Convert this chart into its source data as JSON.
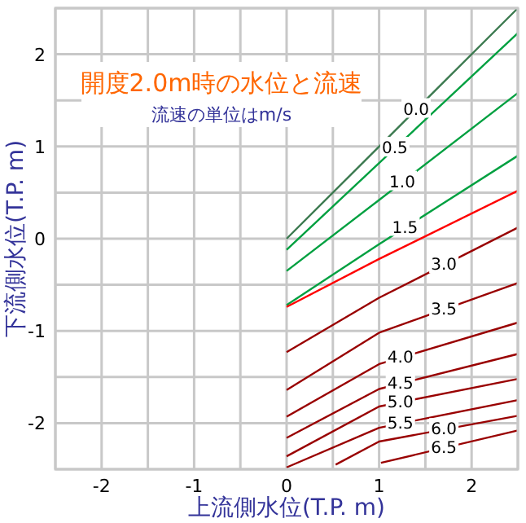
{
  "chart_data": {
    "type": "line",
    "title": "開度2.0m時の水位と流速",
    "subtitle": "流速の単位はm/s",
    "xlabel": "上流側水位(T.P. m)",
    "ylabel": "下流側水位(T.P. m)",
    "xlim": [
      -2.5,
      2.5
    ],
    "ylim": [
      -2.5,
      2.5
    ],
    "xticks": [
      {
        "value": -2.5,
        "label": null
      },
      -2,
      {
        "value": -1.5,
        "label": null
      },
      -1,
      {
        "value": -0.5,
        "label": null
      },
      0,
      {
        "value": 0.5,
        "label": null
      },
      1,
      {
        "value": 1.5,
        "label": null
      },
      2,
      {
        "value": 2.5,
        "label": null
      }
    ],
    "yticks": [
      {
        "value": -2.5,
        "label": null
      },
      -2,
      {
        "value": -1.5,
        "label": null
      },
      -1,
      {
        "value": -0.5,
        "label": null
      },
      0,
      {
        "value": 0.5,
        "label": null
      },
      1,
      {
        "value": 1.5,
        "label": null
      },
      2,
      {
        "value": 2.5,
        "label": null
      }
    ],
    "grid": true,
    "legend": false,
    "marker": "none",
    "line_style": "solid",
    "series": [
      {
        "name": "0.0",
        "color": "#3c7a50",
        "x": [
          0,
          1,
          2.5
        ],
        "values": [
          0.0,
          1.0,
          2.5
        ]
      },
      {
        "name": "0.5",
        "color": "#00a040",
        "x": [
          0,
          1,
          2.5
        ],
        "values": [
          -0.12,
          0.82,
          2.23
        ]
      },
      {
        "name": "1.0",
        "color": "#00a040",
        "x": [
          0,
          1,
          2.5
        ],
        "values": [
          -0.35,
          0.42,
          1.58
        ]
      },
      {
        "name": "1.5",
        "color": "#00a040",
        "x": [
          0,
          1,
          2.5
        ],
        "values": [
          -0.72,
          -0.06,
          0.9
        ]
      },
      {
        "color": "#ff0000",
        "x": [
          0,
          1,
          2.5
        ],
        "values": [
          -0.74,
          -0.22,
          0.52
        ]
      },
      {
        "name": "3.0",
        "color": "#990000",
        "x": [
          0,
          1,
          2.5
        ],
        "values": [
          -1.23,
          -0.64,
          0.12
        ]
      },
      {
        "name": "3.5",
        "color": "#990000",
        "x": [
          0,
          1,
          2.5
        ],
        "values": [
          -1.64,
          -1.02,
          -0.48
        ]
      },
      {
        "name": "4.0",
        "color": "#990000",
        "x": [
          0,
          1,
          2.5
        ],
        "values": [
          -1.93,
          -1.36,
          -0.91
        ]
      },
      {
        "name": "4.5",
        "color": "#990000",
        "x": [
          0,
          1,
          2.5
        ],
        "values": [
          -2.16,
          -1.63,
          -1.25
        ]
      },
      {
        "name": "5.0",
        "color": "#990000",
        "x": [
          0,
          1,
          2.5
        ],
        "values": [
          -2.36,
          -1.82,
          -1.52
        ]
      },
      {
        "name": "5.5",
        "color": "#990000",
        "x": [
          0,
          1,
          2.5
        ],
        "values": [
          -2.48,
          -2.05,
          -1.75
        ]
      },
      {
        "name": "6.0",
        "color": "#990000",
        "x": [
          0.53,
          1,
          2.5
        ],
        "values": [
          -2.45,
          -2.2,
          -1.92
        ]
      },
      {
        "name": "6.5",
        "color": "#990000",
        "x": [
          1.02,
          2.5
        ],
        "values": [
          -2.43,
          -2.08
        ]
      }
    ]
  }
}
